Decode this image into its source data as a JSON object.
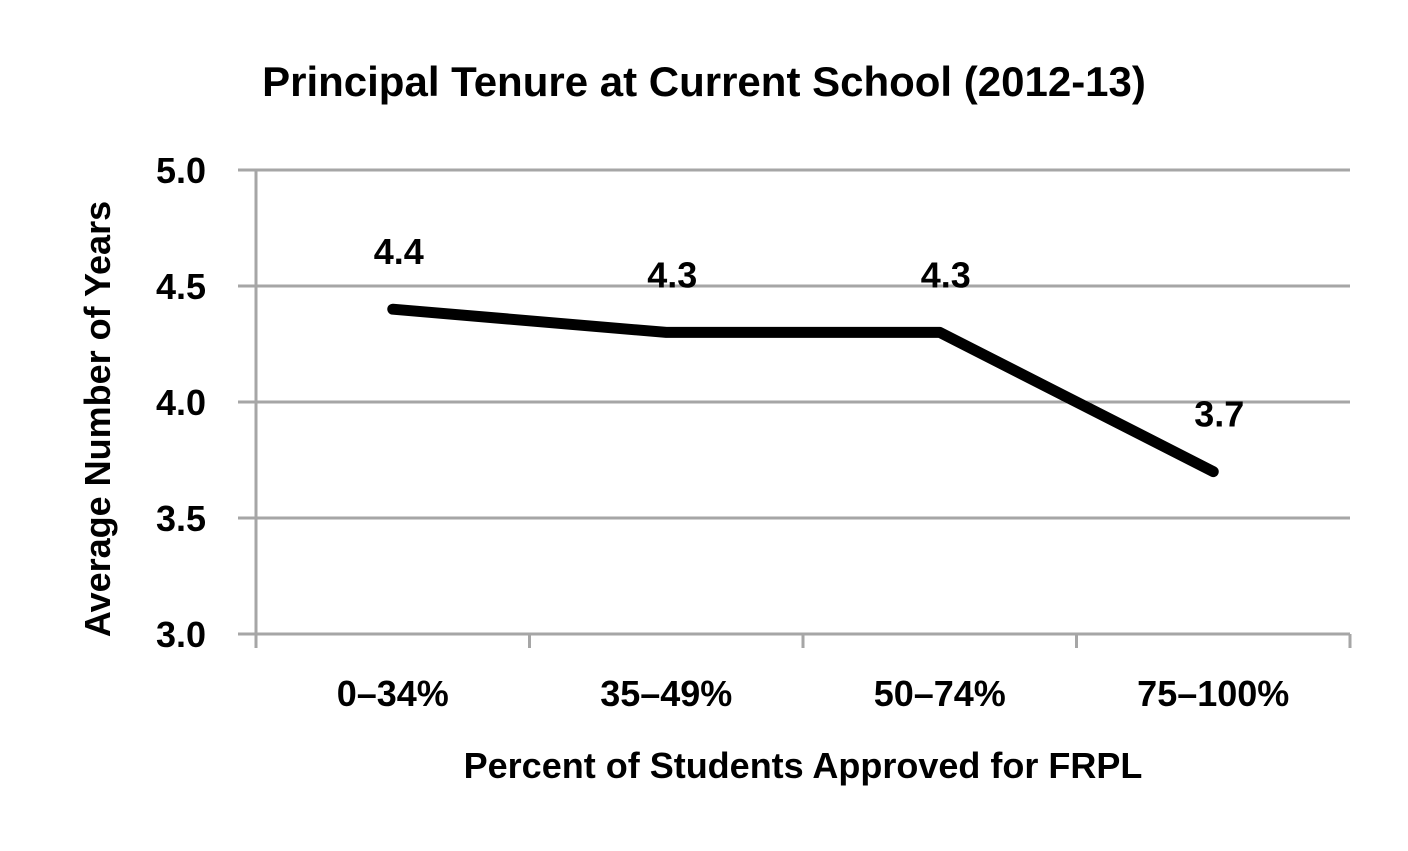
{
  "chart_data": {
    "type": "line",
    "title": "Principal Tenure at Current School (2012-13)",
    "xlabel": "Percent of Students Approved for FRPL",
    "ylabel": "Average Number of Years",
    "categories": [
      "0–34%",
      "35–49%",
      "50–74%",
      "75–100%"
    ],
    "series": [
      {
        "values": [
          4.4,
          4.3,
          4.3,
          3.7
        ]
      }
    ],
    "data_labels": [
      "4.4",
      "4.3",
      "4.3",
      "3.7"
    ],
    "ylim": [
      3.0,
      5.0
    ],
    "yticks": [
      3.0,
      3.5,
      4.0,
      4.5,
      5.0
    ],
    "ytick_labels": [
      "3.0",
      "3.5",
      "4.0",
      "4.5",
      "5.0"
    ],
    "grid": true,
    "legend": "none",
    "colors": {
      "line": "#000000",
      "grid": "#a6a6a6",
      "axis": "#a6a6a6",
      "text": "#000000",
      "background": "#ffffff"
    }
  }
}
